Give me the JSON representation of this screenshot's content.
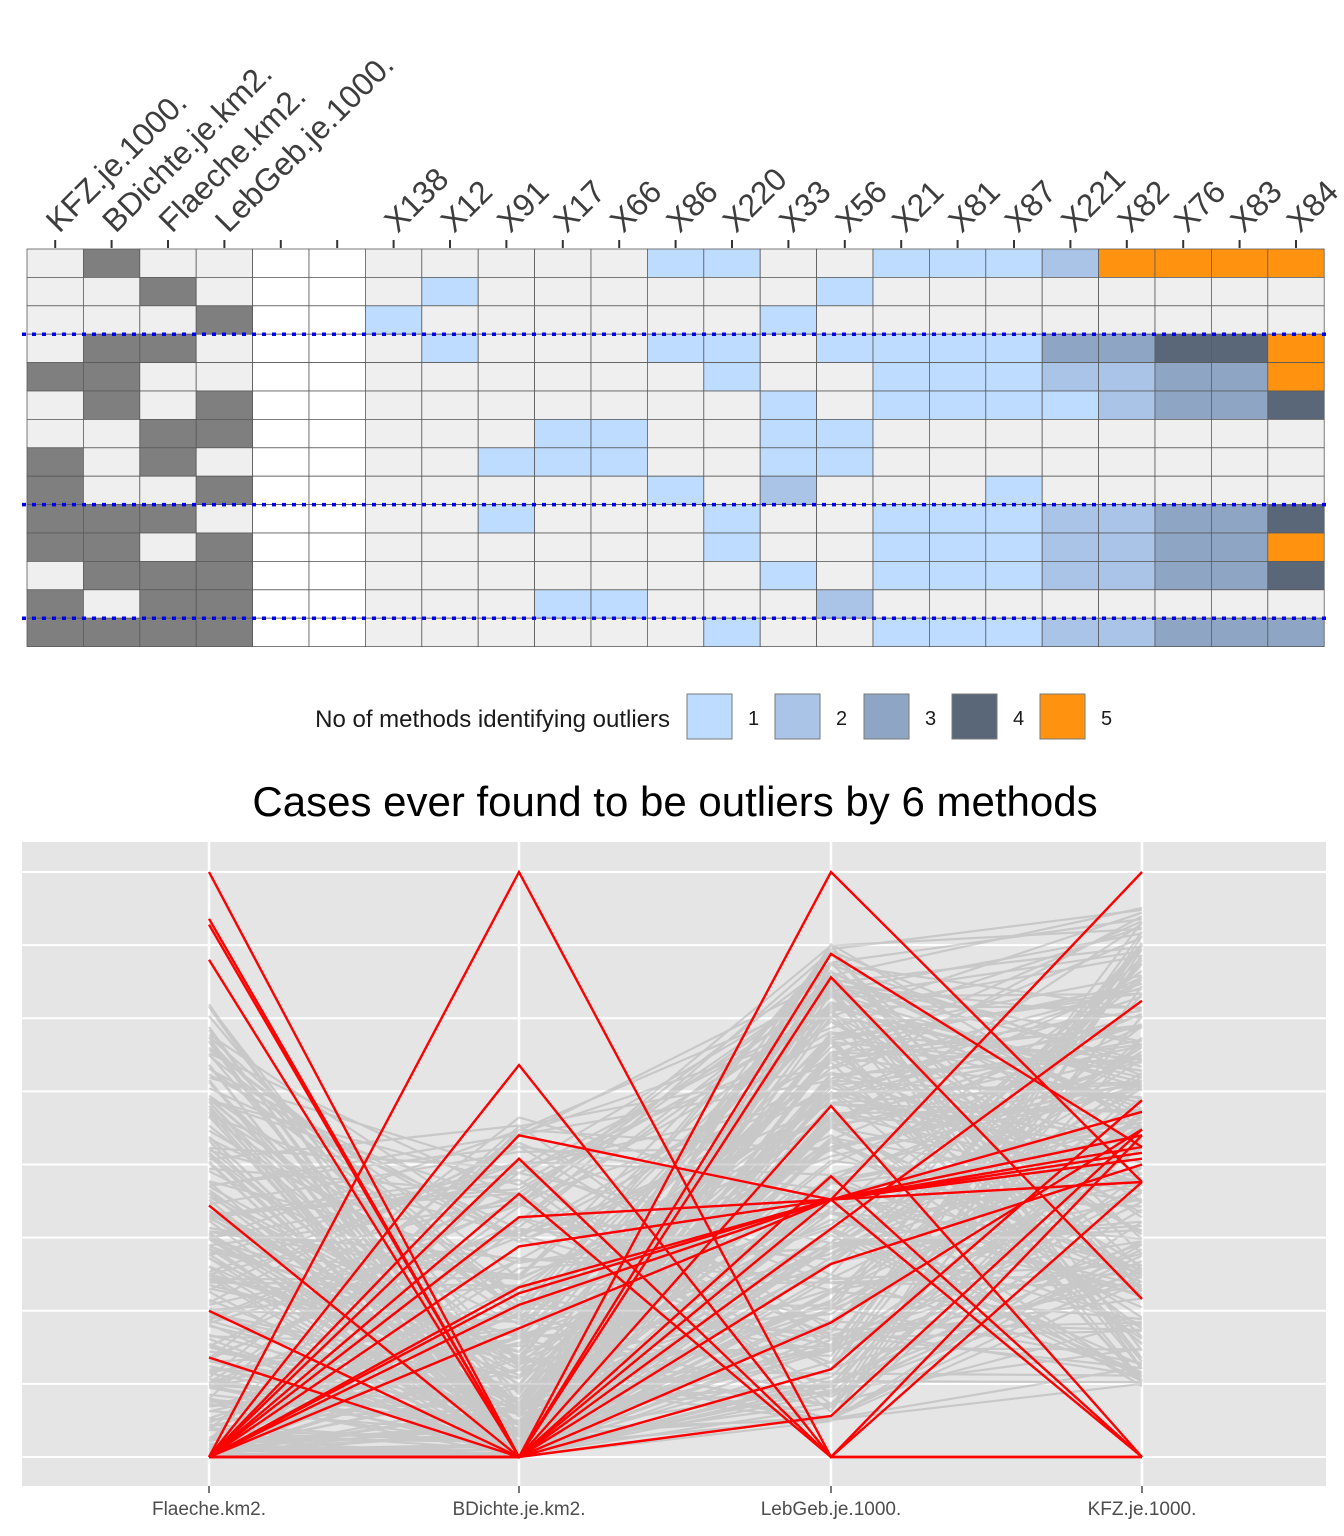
{
  "chart_data": [
    {
      "type": "heatmap",
      "columns": [
        "KFZ.je.1000.",
        "BDichte.je.km2.",
        "Flaeche.km2.",
        "LebGeb.je.1000.",
        "",
        "",
        "X138",
        "X12",
        "X91",
        "X17",
        "X66",
        "X86",
        "X220",
        "X33",
        "X56",
        "X21",
        "X81",
        "X87",
        "X221",
        "X82",
        "X76",
        "X83",
        "X84"
      ],
      "n_rows": 14,
      "variable_flags": [
        [
          0,
          1,
          0,
          0
        ],
        [
          0,
          0,
          1,
          0
        ],
        [
          0,
          0,
          0,
          1
        ],
        [
          0,
          1,
          1,
          0
        ],
        [
          1,
          1,
          0,
          0
        ],
        [
          0,
          1,
          0,
          1
        ],
        [
          0,
          0,
          1,
          1
        ],
        [
          1,
          0,
          1,
          0
        ],
        [
          1,
          0,
          0,
          1
        ],
        [
          1,
          1,
          1,
          0
        ],
        [
          1,
          1,
          0,
          1
        ],
        [
          0,
          1,
          1,
          1
        ],
        [
          1,
          0,
          1,
          1
        ],
        [
          1,
          1,
          1,
          1
        ]
      ],
      "method_counts": [
        [
          0,
          0,
          0,
          0,
          0,
          1,
          1,
          0,
          0,
          1,
          1,
          1,
          2,
          5,
          5,
          5,
          5
        ],
        [
          0,
          1,
          0,
          0,
          0,
          0,
          0,
          0,
          1,
          0,
          0,
          0,
          0,
          0,
          0,
          0,
          0
        ],
        [
          1,
          0,
          0,
          0,
          0,
          0,
          0,
          1,
          0,
          0,
          0,
          0,
          0,
          0,
          0,
          0,
          0
        ],
        [
          0,
          1,
          0,
          0,
          0,
          1,
          1,
          0,
          1,
          1,
          1,
          1,
          3,
          3,
          4,
          4,
          5
        ],
        [
          0,
          0,
          0,
          0,
          0,
          0,
          1,
          0,
          0,
          1,
          1,
          1,
          2,
          2,
          3,
          3,
          5
        ],
        [
          0,
          0,
          0,
          0,
          0,
          0,
          0,
          1,
          0,
          1,
          1,
          1,
          1,
          2,
          3,
          3,
          4
        ],
        [
          0,
          0,
          0,
          1,
          1,
          0,
          0,
          1,
          1,
          0,
          0,
          0,
          0,
          0,
          0,
          0,
          0
        ],
        [
          0,
          0,
          1,
          1,
          1,
          0,
          0,
          1,
          1,
          0,
          0,
          0,
          0,
          0,
          0,
          0,
          0
        ],
        [
          0,
          0,
          0,
          0,
          0,
          1,
          0,
          2,
          0,
          0,
          0,
          1,
          0,
          0,
          0,
          0,
          0
        ],
        [
          0,
          0,
          1,
          0,
          0,
          0,
          1,
          0,
          0,
          1,
          1,
          1,
          2,
          2,
          3,
          3,
          4
        ],
        [
          0,
          0,
          0,
          0,
          0,
          0,
          1,
          0,
          0,
          1,
          1,
          1,
          2,
          2,
          3,
          3,
          5
        ],
        [
          0,
          0,
          0,
          0,
          0,
          0,
          0,
          1,
          0,
          1,
          1,
          1,
          2,
          2,
          3,
          3,
          4
        ],
        [
          0,
          0,
          0,
          1,
          1,
          0,
          0,
          0,
          2,
          0,
          0,
          0,
          0,
          0,
          0,
          0,
          0
        ],
        [
          0,
          0,
          0,
          0,
          0,
          0,
          1,
          0,
          0,
          1,
          1,
          1,
          2,
          2,
          3,
          3,
          3
        ]
      ],
      "separator_after_rows": [
        2,
        8,
        12
      ],
      "legend": {
        "title": "No of methods identifying outliers",
        "levels": [
          "1",
          "2",
          "3",
          "4",
          "5"
        ],
        "colors": [
          "#bddcff",
          "#aac4e8",
          "#8ea6c4",
          "#5a6779",
          "#ff9310"
        ]
      },
      "colors": {
        "flag": "#7f7f7f",
        "empty": "#efefef",
        "blank": "#ffffff",
        "separator": "#0000ee"
      }
    },
    {
      "type": "line",
      "title": "Cases ever found to be outliers by 6 methods",
      "axes": [
        "Flaeche.km2.",
        "BDichte.je.km2.",
        "LebGeb.je.1000.",
        "KFZ.je.1000."
      ],
      "ylim": [
        0,
        1
      ],
      "y_gridlines": [
        0,
        0.125,
        0.25,
        0.375,
        0.5,
        0.625,
        0.75,
        0.875,
        1
      ],
      "highlighted_series": [
        [
          1.0,
          0.0,
          0.33,
          0.5
        ],
        [
          0.92,
          0.0,
          0.6,
          0.0
        ],
        [
          0.91,
          0.0,
          0.48,
          0.0
        ],
        [
          0.85,
          0.0,
          0.39,
          0.78
        ],
        [
          0.43,
          0.0,
          0.86,
          0.53
        ],
        [
          0.25,
          0.0,
          0.82,
          0.27
        ],
        [
          0.17,
          0.0,
          1.0,
          0.47
        ],
        [
          0.0,
          1.0,
          0.0,
          0.47
        ],
        [
          0.0,
          0.67,
          0.0,
          0.0
        ],
        [
          0.0,
          0.55,
          0.44,
          1.0
        ],
        [
          0.0,
          0.51,
          0.0,
          0.55
        ],
        [
          0.0,
          0.45,
          0.0,
          0.0
        ],
        [
          0.0,
          0.41,
          0.44,
          0.47
        ],
        [
          0.0,
          0.36,
          0.44,
          0.0
        ],
        [
          0.0,
          0.29,
          0.44,
          0.55
        ],
        [
          0.0,
          0.28,
          0.44,
          0.51
        ],
        [
          0.0,
          0.26,
          0.44,
          0.59
        ],
        [
          0.0,
          0.22,
          0.44,
          0.53
        ],
        [
          0.0,
          0.0,
          0.44,
          0.52
        ],
        [
          0.0,
          0.0,
          0.23,
          0.56
        ],
        [
          0.0,
          0.0,
          0.15,
          0.61
        ],
        [
          0.0,
          0.0,
          0.07,
          0.56
        ]
      ],
      "colors": {
        "panel": "#e5e5e5",
        "grid": "#ffffff",
        "highlight": "#ff0000",
        "background_lines": "#a6a6a6"
      }
    }
  ]
}
